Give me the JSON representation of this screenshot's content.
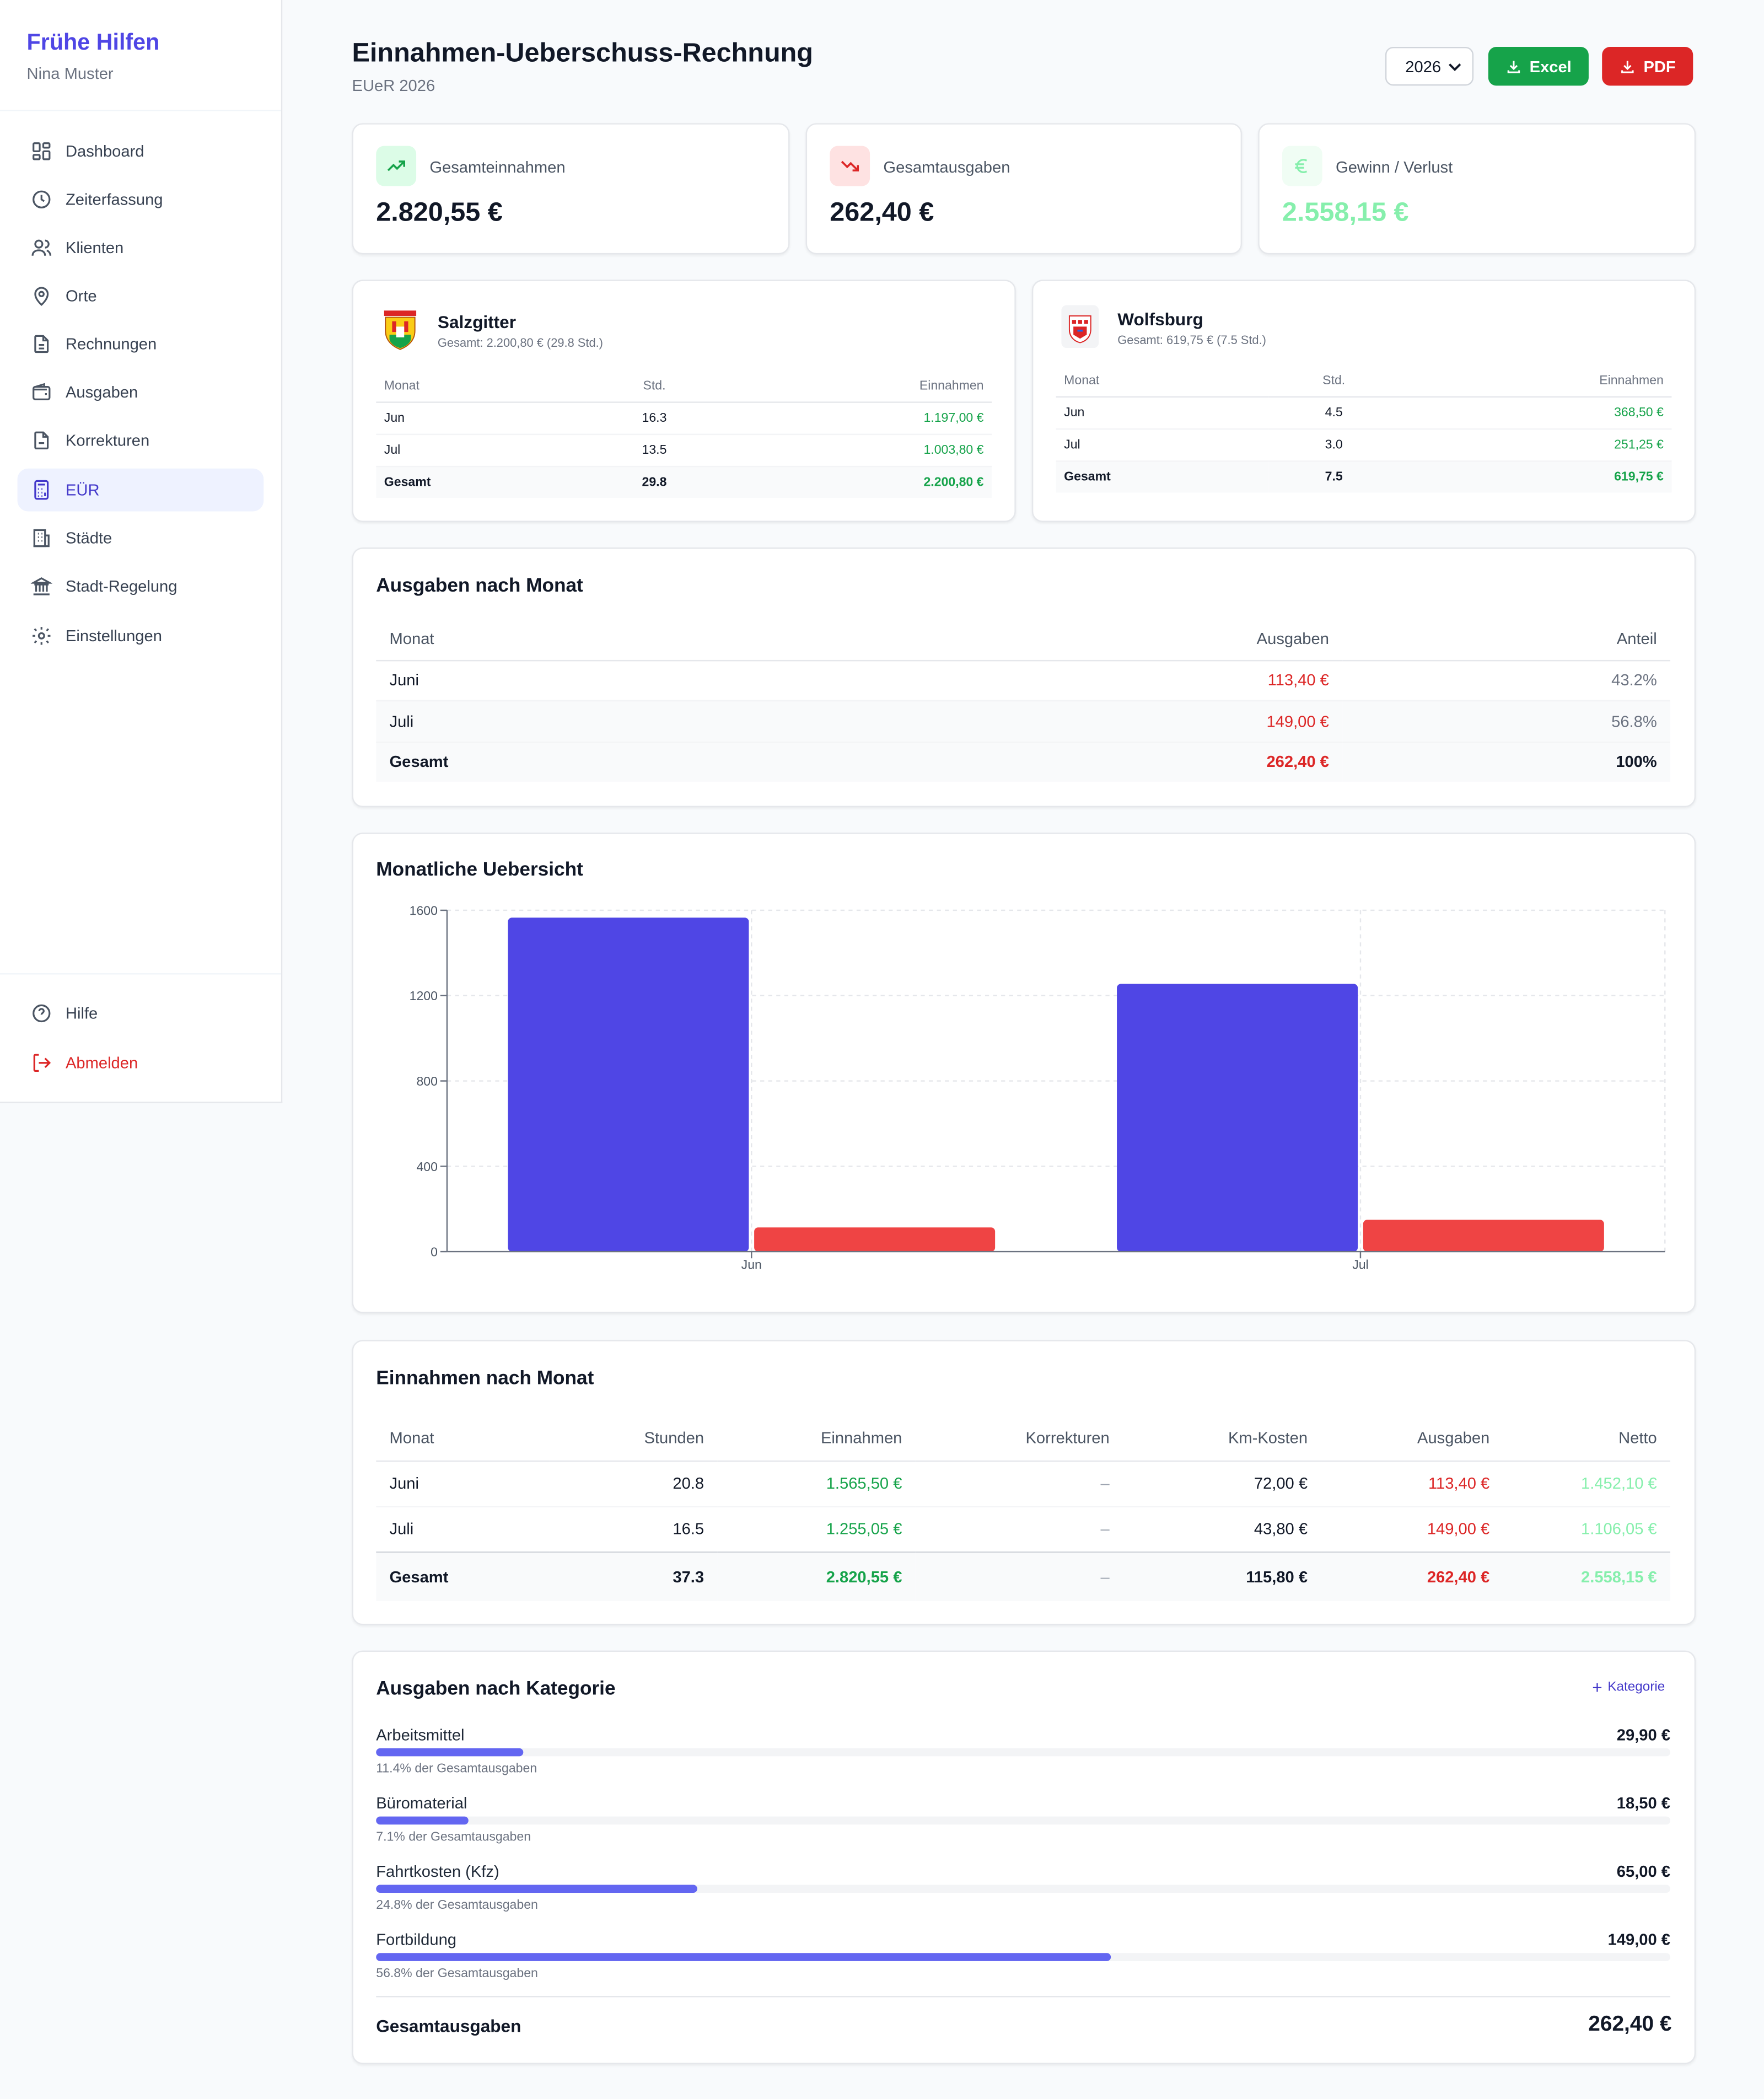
{
  "app": {
    "brand": "Frühe Hilfen",
    "user": "Nina Muster"
  },
  "nav": [
    {
      "label": "Dashboard",
      "icon": "dashboard-icon"
    },
    {
      "label": "Zeiterfassung",
      "icon": "clock-icon"
    },
    {
      "label": "Klienten",
      "icon": "users-icon"
    },
    {
      "label": "Orte",
      "icon": "map-pin-icon"
    },
    {
      "label": "Rechnungen",
      "icon": "file-text-icon"
    },
    {
      "label": "Ausgaben",
      "icon": "wallet-icon"
    },
    {
      "label": "Korrekturen",
      "icon": "file-edit-icon"
    },
    {
      "label": "EÜR",
      "icon": "calculator-icon",
      "active": true
    },
    {
      "label": "Städte",
      "icon": "building-icon"
    },
    {
      "label": "Stadt-Regelung",
      "icon": "landmark-icon"
    },
    {
      "label": "Einstellungen",
      "icon": "gear-icon"
    }
  ],
  "nav_bottom": {
    "help": "Hilfe",
    "logout": "Abmelden"
  },
  "header": {
    "title": "Einnahmen-Ueberschuss-Rechnung",
    "subtitle": "EUeR 2026",
    "year": "2026",
    "excel_label": "Excel",
    "pdf_label": "PDF"
  },
  "colors": {
    "accent": "#4f46e5",
    "green": "#16a34a",
    "red": "#dc2626",
    "bar_income": "#4f46e5",
    "bar_expense": "#ef4444"
  },
  "stats": {
    "income": {
      "label": "Gesamteinnahmen",
      "value": "2.820,55 €"
    },
    "expense": {
      "label": "Gesamtausgaben",
      "value": "262,40 €"
    },
    "profit": {
      "label": "Gewinn / Verlust",
      "value": "2.558,15 €"
    }
  },
  "cities": {
    "headers": [
      "Monat",
      "Std.",
      "Einnahmen"
    ],
    "salzgitter": {
      "name": "Salzgitter",
      "summary": "Gesamt: 2.200,80 € (29.8 Std.)",
      "rows": [
        {
          "month": "Jun",
          "hours": "16.3",
          "income": "1.197,00 €"
        },
        {
          "month": "Jul",
          "hours": "13.5",
          "income": "1.003,80 €"
        }
      ],
      "total": {
        "month": "Gesamt",
        "hours": "29.8",
        "income": "2.200,80 €"
      }
    },
    "wolfsburg": {
      "name": "Wolfsburg",
      "summary": "Gesamt: 619,75 € (7.5 Std.)",
      "rows": [
        {
          "month": "Jun",
          "hours": "4.5",
          "income": "368,50 €"
        },
        {
          "month": "Jul",
          "hours": "3.0",
          "income": "251,25 €"
        }
      ],
      "total": {
        "month": "Gesamt",
        "hours": "7.5",
        "income": "619,75 €"
      }
    }
  },
  "expenses_by_month": {
    "title": "Ausgaben nach Monat",
    "headers": [
      "Monat",
      "Ausgaben",
      "Anteil"
    ],
    "rows": [
      {
        "month": "Juni",
        "amount": "113,40 €",
        "share": "43.2%"
      },
      {
        "month": "Juli",
        "amount": "149,00 €",
        "share": "56.8%"
      }
    ],
    "total": {
      "month": "Gesamt",
      "amount": "262,40 €",
      "share": "100%"
    }
  },
  "overview": {
    "title": "Monatliche Uebersicht"
  },
  "chart_data": {
    "type": "bar",
    "categories": [
      "Jun",
      "Jul"
    ],
    "series": [
      {
        "values": [
          1565.5,
          1255.05
        ],
        "color": "#4f46e5"
      },
      {
        "values": [
          113.4,
          149.0
        ],
        "color": "#ef4444"
      }
    ],
    "ylim": [
      0,
      1600
    ],
    "yticks": [
      0,
      400,
      800,
      1200,
      1600
    ],
    "grid": true
  },
  "income_by_month": {
    "title": "Einnahmen nach Monat",
    "headers": [
      "Monat",
      "Stunden",
      "Einnahmen",
      "Korrekturen",
      "Km-Kosten",
      "Ausgaben",
      "Netto"
    ],
    "rows": [
      {
        "month": "Juni",
        "hours": "20.8",
        "income": "1.565,50 €",
        "corr": "–",
        "km": "72,00 €",
        "exp": "113,40 €",
        "net": "1.452,10 €"
      },
      {
        "month": "Juli",
        "hours": "16.5",
        "income": "1.255,05 €",
        "corr": "–",
        "km": "43,80 €",
        "exp": "149,00 €",
        "net": "1.106,05 €"
      }
    ],
    "total": {
      "month": "Gesamt",
      "hours": "37.3",
      "income": "2.820,55 €",
      "corr": "–",
      "km": "115,80 €",
      "exp": "262,40 €",
      "net": "2.558,15 €"
    }
  },
  "categories": {
    "title": "Ausgaben nach Kategorie",
    "add_label": "Kategorie",
    "items": [
      {
        "name": "Arbeitsmittel",
        "value": "29,90 €",
        "pct_text": "11.4% der Gesamtausgaben",
        "pct": 0.114
      },
      {
        "name": "Büromaterial",
        "value": "18,50 €",
        "pct_text": "7.1% der Gesamtausgaben",
        "pct": 0.071
      },
      {
        "name": "Fahrtkosten (Kfz)",
        "value": "65,00 €",
        "pct_text": "24.8% der Gesamtausgaben",
        "pct": 0.248
      },
      {
        "name": "Fortbildung",
        "value": "149,00 €",
        "pct_text": "56.8% der Gesamtausgaben",
        "pct": 0.568
      }
    ],
    "total_label": "Gesamtausgaben",
    "total_value": "262,40 €"
  }
}
